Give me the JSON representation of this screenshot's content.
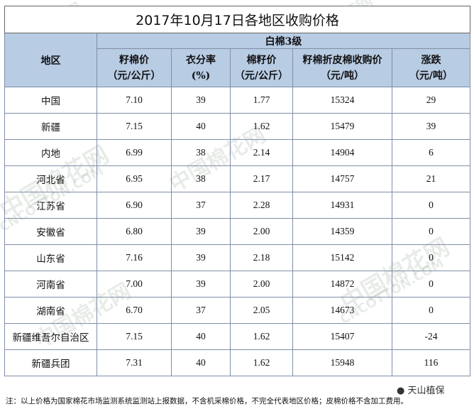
{
  "title": "2017年10月17日各地区收购价格",
  "group_header": "白棉3级",
  "columns": [
    {
      "line1": "地区",
      "line2": ""
    },
    {
      "line1": "籽棉价",
      "line2": "（元/公斤）"
    },
    {
      "line1": "衣分率",
      "line2": "(%)"
    },
    {
      "line1": "棉籽价",
      "line2": "（元/公斤）"
    },
    {
      "line1": "籽棉折皮棉收购价",
      "line2": "（元/吨）"
    },
    {
      "line1": "涨跌",
      "line2": "（元/吨）"
    }
  ],
  "rows": [
    [
      "中国",
      "7.10",
      "39",
      "1.77",
      "15324",
      "29"
    ],
    [
      "新疆",
      "7.15",
      "40",
      "1.62",
      "15479",
      "39"
    ],
    [
      "内地",
      "6.99",
      "38",
      "2.14",
      "14904",
      "6"
    ],
    [
      "河北省",
      "6.95",
      "38",
      "2.17",
      "14757",
      "21"
    ],
    [
      "江苏省",
      "6.90",
      "37",
      "2.28",
      "14931",
      "0"
    ],
    [
      "安徽省",
      "6.80",
      "39",
      "2.00",
      "14359",
      "0"
    ],
    [
      "山东省",
      "7.16",
      "39",
      "2.18",
      "15142",
      "0"
    ],
    [
      "河南省",
      "7.00",
      "39",
      "2.00",
      "14872",
      "0"
    ],
    [
      "湖南省",
      "6.70",
      "37",
      "2.05",
      "14673",
      "0"
    ],
    [
      "新疆维吾尔自治区",
      "7.15",
      "40",
      "1.62",
      "15407",
      "-24"
    ],
    [
      "新疆兵团",
      "7.31",
      "40",
      "1.62",
      "15948",
      "116"
    ]
  ],
  "note": "注：以上价格为国家棉花市场监测系统监测站上报数据，不含机采棉价格，不完全代表地区价格；皮棉价格不含加工费用。",
  "account_logo": "天山植保",
  "watermark_text": "中国棉花网",
  "watermark_sub": "CNCOTTON.COM"
}
